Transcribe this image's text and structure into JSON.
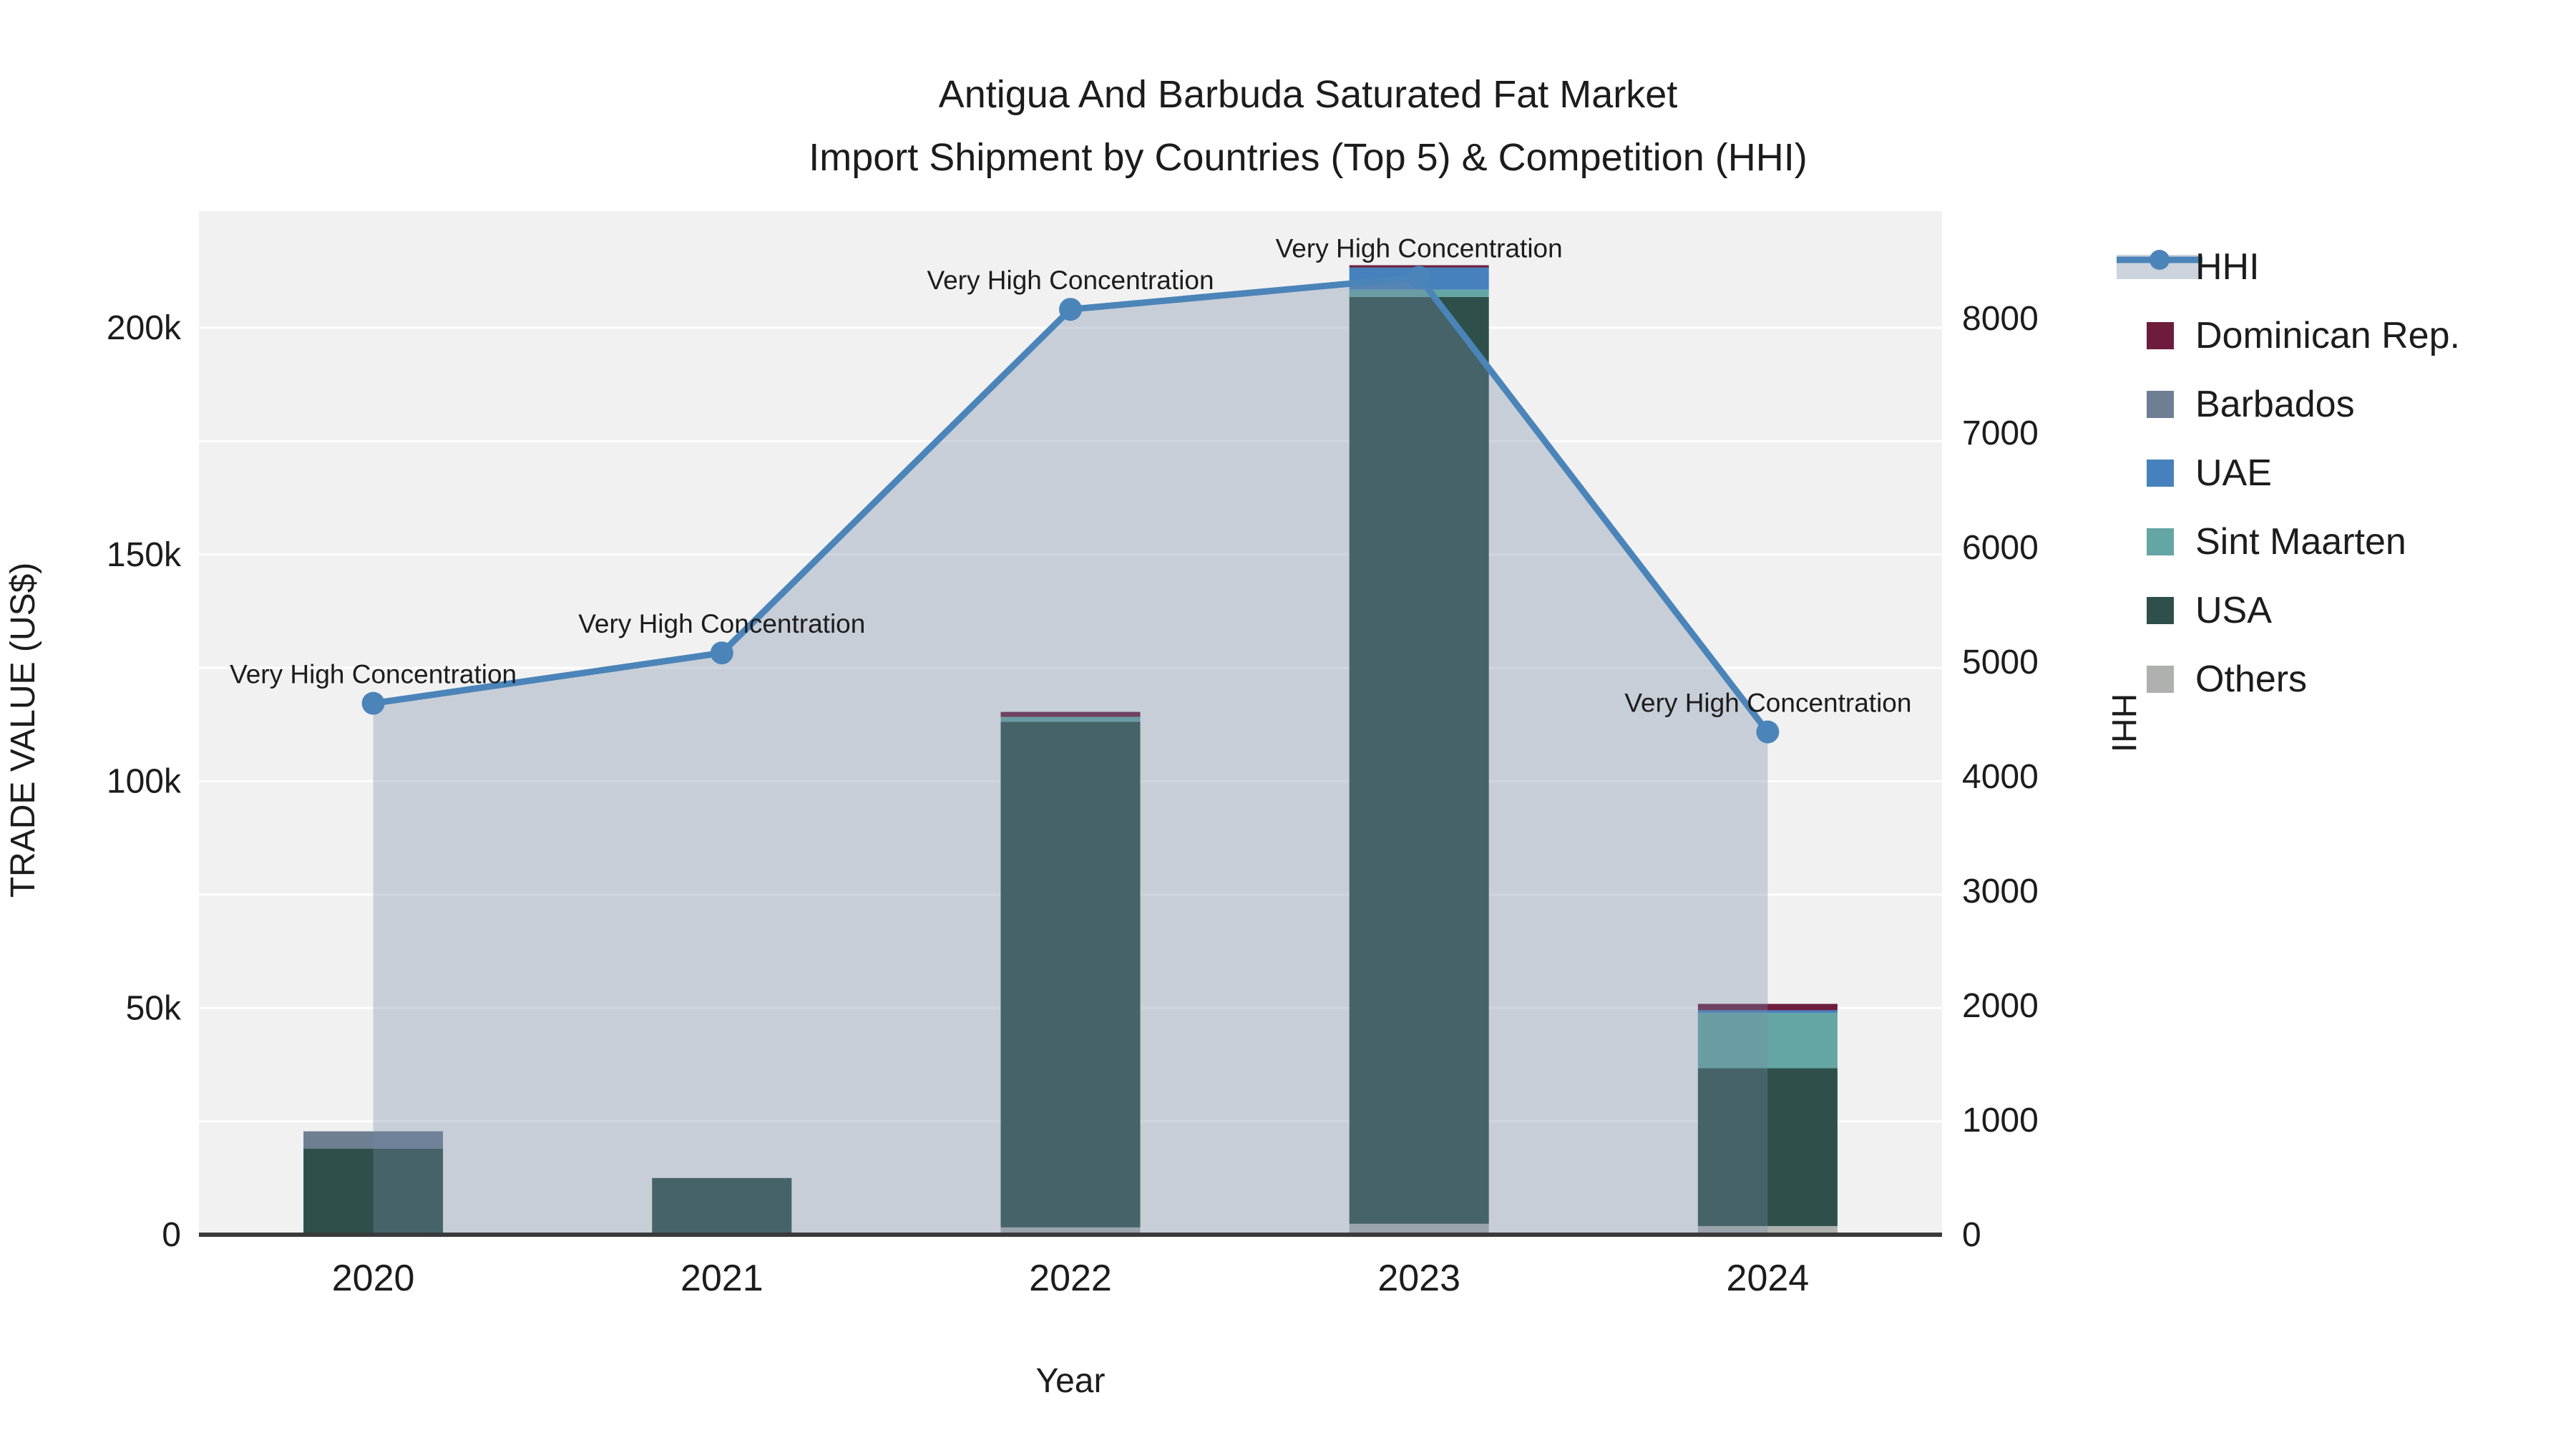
{
  "chart_data": {
    "type": "bar+line",
    "title_line1": "Antigua And Barbuda Saturated Fat Market",
    "title_line2": "Import Shipment by Countries (Top 5) & Competition (HHI)",
    "categories": [
      "2020",
      "2021",
      "2022",
      "2023",
      "2024"
    ],
    "bar_series": [
      {
        "name": "Others",
        "color": "#afb1af",
        "values": [
          400,
          0,
          1600,
          2400,
          1900
        ]
      },
      {
        "name": "USA",
        "color": "#2e4f4a",
        "values": [
          18600,
          12500,
          111500,
          204400,
          34800
        ]
      },
      {
        "name": "Sint Maarten",
        "color": "#64a6a3",
        "values": [
          0,
          0,
          1100,
          1600,
          12200
        ]
      },
      {
        "name": "UAE",
        "color": "#4681bd",
        "values": [
          0,
          0,
          0,
          4900,
          600
        ]
      },
      {
        "name": "Barbados",
        "color": "#6e7e93",
        "values": [
          3800,
          0,
          0,
          0,
          0
        ]
      },
      {
        "name": "Dominican Rep.",
        "color": "#6d1c3d",
        "values": [
          0,
          0,
          1100,
          500,
          1400
        ]
      }
    ],
    "line_series": {
      "name": "HHI",
      "color": "#4b84b8",
      "area_color": "rgba(118,139,166,0.34)",
      "values": [
        4640,
        5080,
        8080,
        8360,
        4390
      ]
    },
    "annotations": [
      "Very High Concentration",
      "Very High Concentration",
      "Very High Concentration",
      "Very High Concentration",
      "Very High Concentration"
    ],
    "left_axis": {
      "title": "TRADE VALUE (US$)",
      "tick_values": [
        0,
        50000,
        100000,
        150000,
        200000
      ],
      "tick_labels": [
        "0",
        "50k",
        "100k",
        "150k",
        "200k"
      ],
      "max": 225000
    },
    "right_axis": {
      "title": "HHI",
      "tick_values": [
        0,
        1000,
        2000,
        3000,
        4000,
        5000,
        6000,
        7000,
        8000
      ],
      "tick_labels": [
        "0",
        "1000",
        "2000",
        "3000",
        "4000",
        "5000",
        "6000",
        "7000",
        "8000"
      ],
      "max": 8937
    },
    "x_axis": {
      "title": "Year"
    },
    "legend_order": [
      "HHI",
      "Dominican Rep.",
      "Barbados",
      "UAE",
      "Sint Maarten",
      "USA",
      "Others"
    ],
    "style": {
      "plot_bg": "#f1f1f2",
      "grid_color": "rgba(255,255,255,0.9)",
      "baseline_color": "#3a3a3a",
      "legend_area_band": "#ccd3dc"
    }
  }
}
